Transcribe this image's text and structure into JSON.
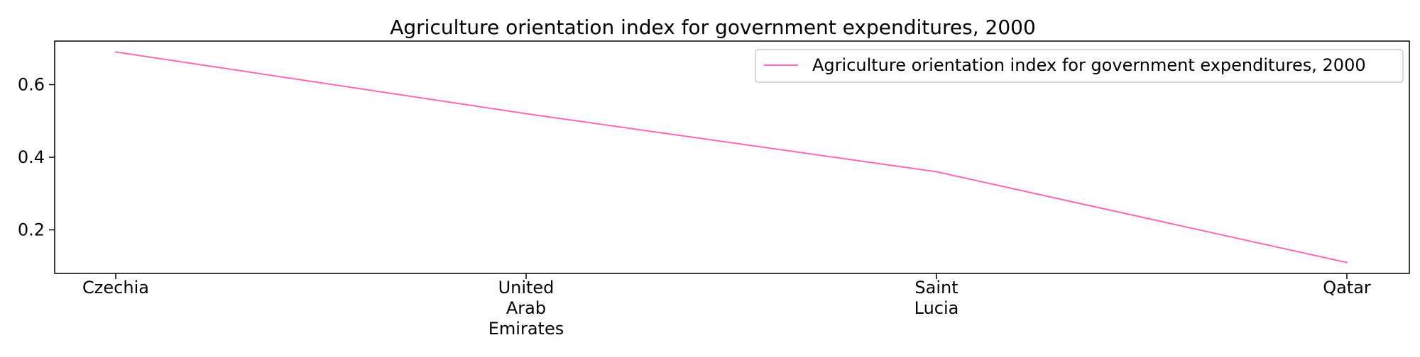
{
  "chart_data": {
    "type": "line",
    "title": "Agriculture orientation index for government expenditures, 2000",
    "xlabel": "",
    "ylabel": "",
    "categories": [
      "Czechia",
      "United Arab Emirates",
      "Saint Lucia",
      "Qatar"
    ],
    "category_lines": [
      [
        "Czechia"
      ],
      [
        "United",
        "Arab",
        "Emirates"
      ],
      [
        "Saint",
        "Lucia"
      ],
      [
        "Qatar"
      ]
    ],
    "series": [
      {
        "name": "Agriculture orientation index for government expenditures, 2000",
        "values": [
          0.69,
          0.52,
          0.36,
          0.11
        ],
        "color": "#ff69b4"
      }
    ],
    "ylim": [
      0.08,
      0.72
    ],
    "yticks": [
      0.2,
      0.4,
      0.6
    ],
    "ytick_labels": [
      "0.2",
      "0.4",
      "0.6"
    ],
    "grid": false,
    "legend_position": "top-right"
  }
}
